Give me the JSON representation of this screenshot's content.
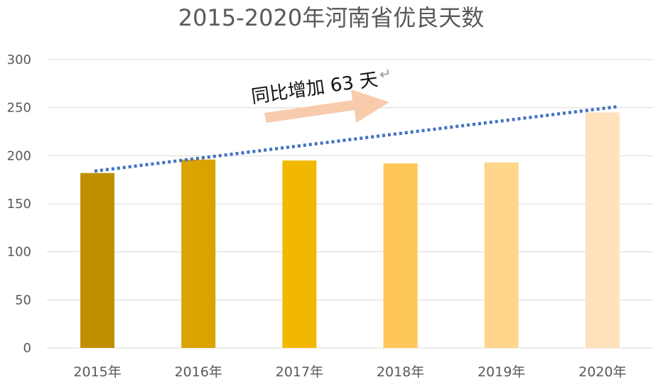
{
  "chart_data": {
    "type": "bar",
    "title": "2015-2020年河南省优良天数",
    "xlabel": "",
    "ylabel": "",
    "categories": [
      "2015年",
      "2016年",
      "2017年",
      "2018年",
      "2019年",
      "2020年"
    ],
    "values": [
      182,
      196,
      195,
      192,
      193,
      245
    ],
    "bar_colors": [
      "#BF8F00",
      "#D9A300",
      "#F2B800",
      "#FFC658",
      "#FFD68C",
      "#FFE1BC"
    ],
    "ylim": [
      0,
      300
    ],
    "yticks": [
      "0",
      "50",
      "100",
      "150",
      "200",
      "250",
      "300"
    ],
    "grid": true,
    "trendline": {
      "style": "dotted",
      "color": "#4472C4",
      "start_value": 184,
      "end_value": 251
    },
    "annotation": {
      "text": "同比增加 63 天",
      "arrow_color": "#F8CBAD",
      "return_mark": "↵"
    }
  }
}
